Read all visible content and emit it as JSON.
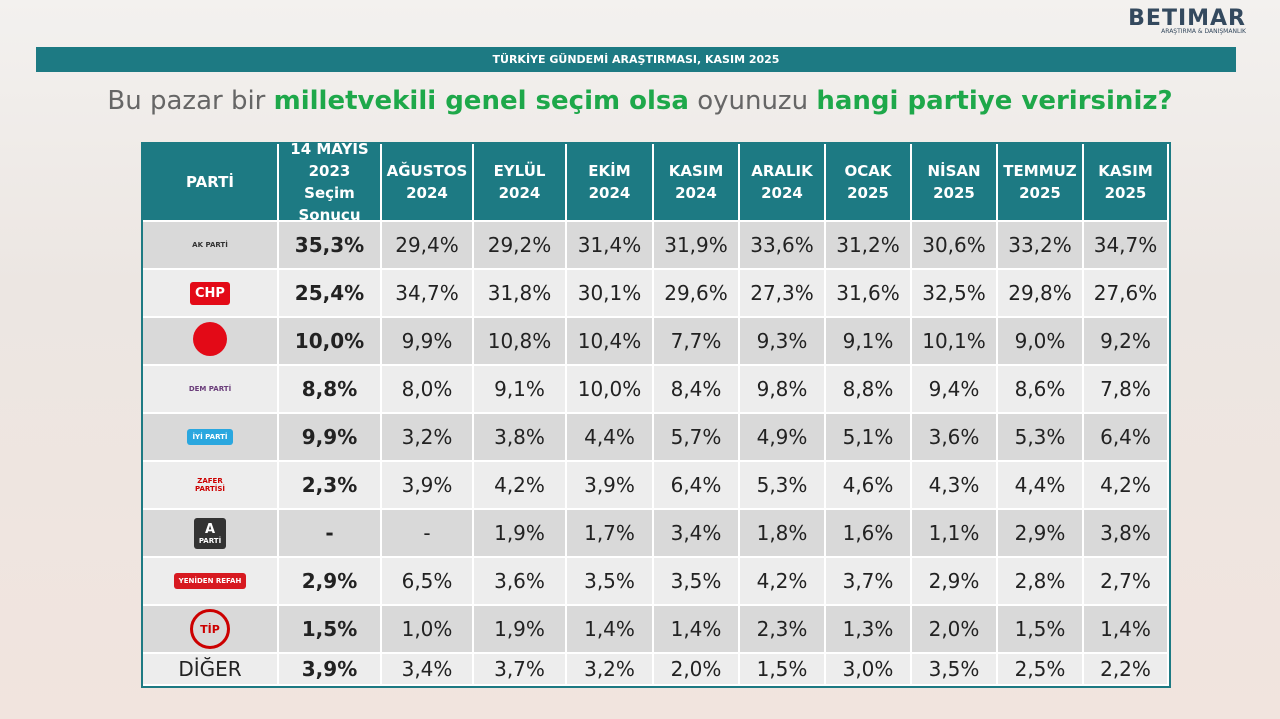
{
  "logo": {
    "name": "BETIMAR",
    "tagline": "ARAŞTIRMA & DANIŞMANLIK"
  },
  "banner": "TÜRKİYE GÜNDEMİ ARAŞTIRMASI, KASIM 2025",
  "title": {
    "parts": [
      "Bu pazar bir",
      "milletvekili genel seçim olsa",
      "oyunuzu",
      "hangi partiye verirsiniz?"
    ]
  },
  "table": {
    "header": [
      "PARTİ",
      "14 MAYIS 2023 Seçim Sonucu",
      "AĞUSTOS 2024",
      "EYLÜL 2024",
      "EKİM 2024",
      "KASIM 2024",
      "ARALIK 2024",
      "OCAK 2025",
      "NİSAN 2025",
      "TEMMUZ 2025",
      "KASIM 2025"
    ],
    "rows": [
      {
        "logo": [
          "AK PARTİ"
        ],
        "cells": [
          "35,3%",
          "29,4%",
          "29,2%",
          "31,4%",
          "31,9%",
          "33,6%",
          "31,2%",
          "30,6%",
          "33,2%",
          "34,7%"
        ]
      },
      {
        "logo": [
          "CHP"
        ],
        "cells": [
          "25,4%",
          "34,7%",
          "31,8%",
          "30,1%",
          "29,6%",
          "27,3%",
          "31,6%",
          "32,5%",
          "29,8%",
          "27,6%"
        ]
      },
      {
        "logo": [],
        "cells": [
          "10,0%",
          "9,9%",
          "10,8%",
          "10,4%",
          "7,7%",
          "9,3%",
          "9,1%",
          "10,1%",
          "9,0%",
          "9,2%"
        ]
      },
      {
        "logo": [
          "DEM PARTİ"
        ],
        "cells": [
          "8,8%",
          "8,0%",
          "9,1%",
          "10,0%",
          "8,4%",
          "9,8%",
          "8,8%",
          "9,4%",
          "8,6%",
          "7,8%"
        ]
      },
      {
        "logo": [
          "İYİ PARTİ"
        ],
        "cells": [
          "9,9%",
          "3,2%",
          "3,8%",
          "4,4%",
          "5,7%",
          "4,9%",
          "5,1%",
          "3,6%",
          "5,3%",
          "6,4%"
        ]
      },
      {
        "logo": [
          "ZAFER",
          "PARTİSİ"
        ],
        "cells": [
          "2,3%",
          "3,9%",
          "4,2%",
          "3,9%",
          "6,4%",
          "5,3%",
          "4,6%",
          "4,3%",
          "4,4%",
          "4,2%"
        ]
      },
      {
        "logo": [
          "A",
          "PARTİ"
        ],
        "cells": [
          "-",
          "-",
          "1,9%",
          "1,7%",
          "3,4%",
          "1,8%",
          "1,6%",
          "1,1%",
          "2,9%",
          "3,8%"
        ]
      },
      {
        "logo": [
          "YENİDEN REFAH"
        ],
        "cells": [
          "2,9%",
          "6,5%",
          "3,6%",
          "3,5%",
          "3,5%",
          "4,2%",
          "3,7%",
          "2,9%",
          "2,8%",
          "2,7%"
        ]
      },
      {
        "logo": [
          "TİP"
        ],
        "cells": [
          "1,5%",
          "1,0%",
          "1,9%",
          "1,4%",
          "1,4%",
          "2,3%",
          "1,3%",
          "2,0%",
          "1,5%",
          "1,4%"
        ]
      },
      {
        "logo": [
          "DİĞER"
        ],
        "cells": [
          "3,9%",
          "3,4%",
          "3,7%",
          "3,2%",
          "2,0%",
          "1,5%",
          "3,0%",
          "3,5%",
          "2,5%",
          "2,2%"
        ]
      }
    ]
  }
}
